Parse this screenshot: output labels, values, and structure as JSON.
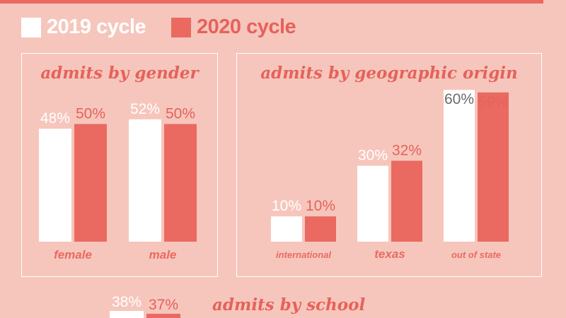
{
  "colors": {
    "background": "#f6c6bc",
    "cycle_2019": "#ffffff",
    "cycle_2020": "#ea6a61",
    "label_2019": "#ffffff",
    "label_2020": "#e5625b",
    "label_dark": "#6b6b6b"
  },
  "legend": {
    "cycle_2019": "2019 cycle",
    "cycle_2020": "2020 cycle"
  },
  "chart_data": [
    {
      "type": "bar",
      "title": "admits by gender",
      "categories": [
        "female",
        "male"
      ],
      "series": [
        {
          "name": "2019 cycle",
          "values": [
            48,
            52
          ],
          "labels": [
            "48%",
            "52%"
          ]
        },
        {
          "name": "2020 cycle",
          "values": [
            50,
            50
          ],
          "labels": [
            "50%",
            "50%"
          ]
        }
      ],
      "xlabel": "",
      "ylabel": "",
      "ylim": [
        0,
        55
      ],
      "grid": false
    },
    {
      "type": "bar",
      "title": "admits by geographic origin",
      "categories": [
        "international",
        "texas",
        "out of state"
      ],
      "series": [
        {
          "name": "2019 cycle",
          "values": [
            10,
            30,
            60
          ],
          "labels": [
            "10%",
            "30%",
            "60%"
          ]
        },
        {
          "name": "2020 cycle",
          "values": [
            10,
            32,
            59
          ],
          "labels": [
            "10%",
            "32%",
            "59%"
          ]
        }
      ],
      "xlabel": "",
      "ylabel": "",
      "ylim": [
        0,
        60
      ],
      "grid": false
    },
    {
      "type": "bar",
      "title": "admits by school",
      "categories": [
        ""
      ],
      "series": [
        {
          "name": "2019 cycle",
          "values": [
            38
          ],
          "labels": [
            "38%"
          ]
        },
        {
          "name": "2020 cycle",
          "values": [
            37
          ],
          "labels": [
            "37%"
          ]
        }
      ],
      "xlabel": "",
      "ylabel": "",
      "grid": false
    }
  ]
}
